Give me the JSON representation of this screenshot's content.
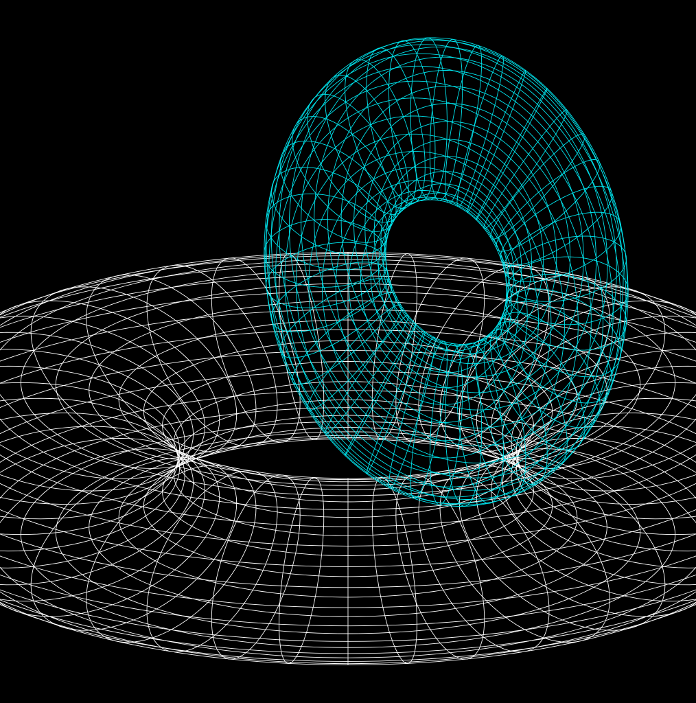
{
  "scene": {
    "background": "#000000",
    "objects": [
      {
        "name": "white-torus",
        "color": "#ffffff",
        "major_radius": 1.0,
        "minor_radius": 0.48,
        "segments_u": 44,
        "segments_v": 28
      },
      {
        "name": "cyan-torus",
        "color": "#00e5ee",
        "major_radius": 0.62,
        "minor_radius": 0.3,
        "segments_u": 44,
        "segments_v": 28
      }
    ]
  }
}
